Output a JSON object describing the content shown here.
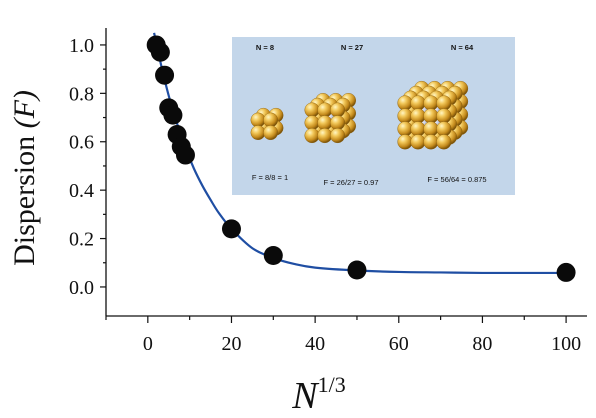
{
  "chart_data": {
    "type": "scatter",
    "xlabel": "N",
    "xlabel_superscript": "1/3",
    "ylabel": "Dispersion ",
    "ylabel_var": "(F)",
    "xlim": [
      -10,
      105
    ],
    "ylim": [
      -0.12,
      1.07
    ],
    "x_ticks": [
      0,
      20,
      40,
      60,
      80,
      100
    ],
    "y_ticks": [
      0.0,
      0.2,
      0.4,
      0.6,
      0.8,
      1.0
    ],
    "x_tick_labels": [
      "0",
      "20",
      "40",
      "60",
      "80",
      "100"
    ],
    "y_tick_labels": [
      "0.0",
      "0.2",
      "0.4",
      "0.6",
      "0.8",
      "1.0"
    ],
    "grid": false,
    "points": {
      "x": [
        2,
        3,
        4,
        5,
        6,
        7,
        8,
        9,
        20,
        30,
        50,
        100
      ],
      "y": [
        1.0,
        0.97,
        0.875,
        0.74,
        0.71,
        0.63,
        0.58,
        0.545,
        0.24,
        0.13,
        0.07,
        0.06
      ],
      "color": "#0a0a0a"
    },
    "fit_curve": {
      "color": "#1f4ea3",
      "x": [
        1.5,
        3,
        5,
        7,
        9,
        11,
        13,
        15,
        17,
        20,
        25,
        30,
        35,
        40,
        50,
        60,
        70,
        80,
        90,
        100
      ],
      "y": [
        1.05,
        0.93,
        0.79,
        0.675,
        0.575,
        0.49,
        0.42,
        0.36,
        0.305,
        0.24,
        0.16,
        0.12,
        0.095,
        0.08,
        0.068,
        0.062,
        0.06,
        0.058,
        0.058,
        0.058
      ]
    },
    "inset": {
      "background": "#c3d6ea",
      "headers": [
        "N = 8",
        "N = 27",
        "N = 64"
      ],
      "formulas": [
        "F = 8/8 = 1",
        "F = 26/27 = 0.97",
        "F = 56/64 = 0.875"
      ]
    }
  }
}
